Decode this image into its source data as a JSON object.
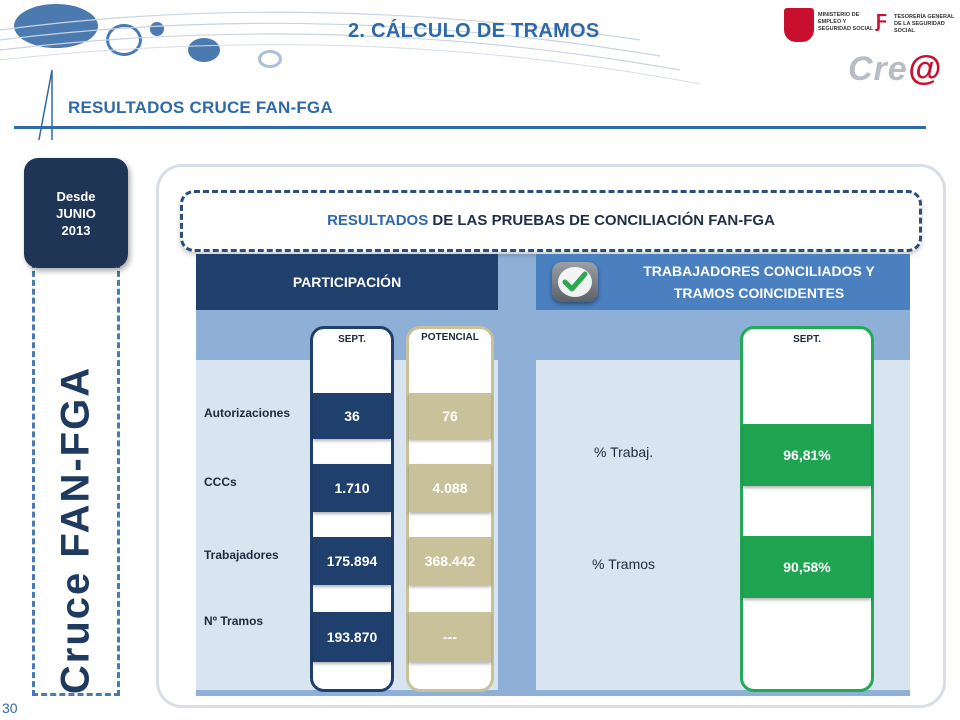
{
  "header": {
    "title": "2. CÁLCULO DE TRAMOS",
    "section": "RESULTADOS CRUCE FAN-FGA",
    "ministry_logo_text": "MINISTERIO DE EMPLEO Y SEGURIDAD SOCIAL",
    "tgss_logo_text": "TESORERÍA GENERAL DE LA SEGURIDAD SOCIAL",
    "cred_logo_text": "Cre",
    "cred_logo_suffix": "@"
  },
  "sidebar": {
    "date_tab": [
      "Desde",
      "JUNIO",
      "2013"
    ],
    "vertical_title": "Cruce FAN-FGA",
    "page_number": "30"
  },
  "banner": {
    "accent": "RESULTADOS",
    "rest": "DE LAS PRUEBAS DE CONCILIACIÓN FAN-FGA"
  },
  "left_panel": {
    "heading": "PARTICIPACIÓN",
    "col_sept": "SEPT.",
    "col_potencial": "POTENCIAL",
    "rows": [
      {
        "label": "Autorizaciones",
        "sept": "36",
        "potencial": "76"
      },
      {
        "label": "CCCs",
        "sept": "1.710",
        "potencial": "4.088"
      },
      {
        "label": "Trabajadores",
        "sept": "175.894",
        "potencial": "368.442"
      },
      {
        "label": "Nº Tramos",
        "sept": "193.870",
        "potencial": "---"
      }
    ]
  },
  "right_panel": {
    "heading_line1": "TRABAJADORES CONCILIADOS Y",
    "heading_line2": "TRAMOS COINCIDENTES",
    "col_sept": "SEPT.",
    "rows": [
      {
        "label": "% Trabaj.",
        "value": "96,81%"
      },
      {
        "label": "% Tramos",
        "value": "90,58%"
      }
    ]
  },
  "colors": {
    "accent_blue": "#2f6aa8",
    "dark_navy": "#1f3f6d",
    "tan": "#c9c19a",
    "green": "#1fa552"
  },
  "icons": [
    "checkmark-icon",
    "ministry-crest-icon",
    "tgss-icon"
  ]
}
